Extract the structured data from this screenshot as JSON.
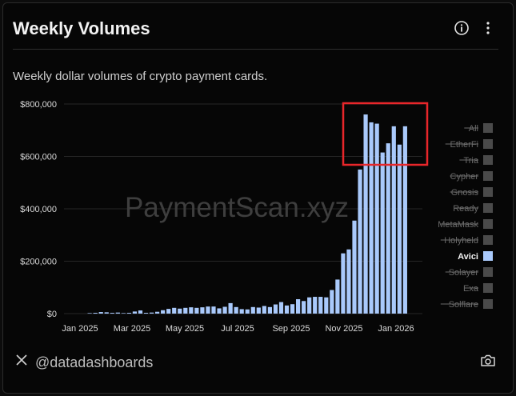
{
  "header": {
    "title": "Weekly Volumes"
  },
  "subtitle": "Weekly dollar volumes of crypto payment cards.",
  "watermark": "PaymentScan.xyz",
  "footer": {
    "handle": "@datadashboards"
  },
  "colors": {
    "bar": "#a9c9fb",
    "highlight_box": "#e8262a",
    "legend_inactive": "#4a4a4a",
    "grid": "#262626"
  },
  "chart_data": {
    "type": "bar",
    "ylim": [
      0,
      800000
    ],
    "y_ticks": [
      "$0",
      "$200,000",
      "$400,000",
      "$600,000",
      "$800,000"
    ],
    "x_ticks": [
      "Jan 2025",
      "Mar 2025",
      "May 2025",
      "Jul 2025",
      "Sep 2025",
      "Nov 2025",
      "Jan 2026"
    ],
    "legend": [
      {
        "label": "All",
        "active": false
      },
      {
        "label": "EtherFi",
        "active": false
      },
      {
        "label": "Tria",
        "active": false
      },
      {
        "label": "Cypher",
        "active": false
      },
      {
        "label": "Gnosis",
        "active": false
      },
      {
        "label": "Ready",
        "active": false
      },
      {
        "label": "MetaMask",
        "active": false
      },
      {
        "label": "Holyheld",
        "active": false
      },
      {
        "label": "Avici",
        "active": true
      },
      {
        "label": "Solayer",
        "active": false
      },
      {
        "label": "Exa",
        "active": false
      },
      {
        "label": "Solflare",
        "active": false
      }
    ],
    "series": [
      {
        "name": "Avici",
        "values": [
          0,
          0,
          0,
          2000,
          3000,
          6000,
          5000,
          3000,
          4000,
          2000,
          3000,
          8000,
          12000,
          3000,
          4000,
          7000,
          13000,
          18000,
          22000,
          19000,
          22000,
          24000,
          22000,
          24000,
          27000,
          27000,
          20000,
          26000,
          40000,
          25000,
          17000,
          16000,
          25000,
          23000,
          29000,
          25000,
          35000,
          44000,
          31000,
          36000,
          55000,
          48000,
          62000,
          64000,
          64000,
          62000,
          90000,
          130000,
          230000,
          245000,
          355000,
          550000,
          760000,
          730000,
          725000,
          615000,
          650000,
          715000,
          645000,
          715000
        ]
      }
    ]
  }
}
